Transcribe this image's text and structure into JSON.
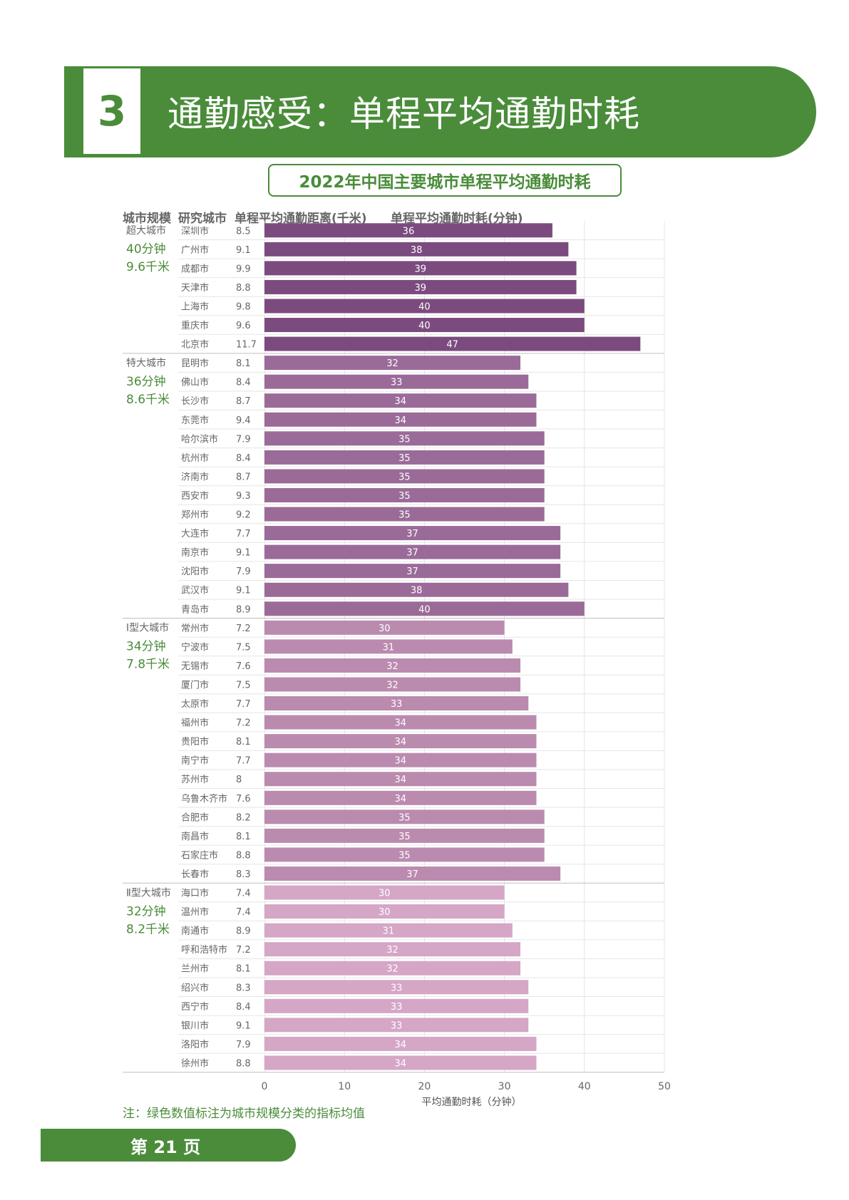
{
  "section": {
    "number": "3",
    "title": "通勤感受：单程平均通勤时耗"
  },
  "chart_data": {
    "type": "bar",
    "orientation": "horizontal",
    "title": "2022年中国主要城市单程平均通勤时耗",
    "column_headers": {
      "scale": "城市规模",
      "city": "研究城市",
      "distance": "单程平均通勤距离(千米)",
      "time": "单程平均通勤时耗(分钟)"
    },
    "xlabel": "平均通勤时耗（分钟）",
    "xlim": [
      0,
      50
    ],
    "xticks": [
      "0",
      "10",
      "20",
      "30",
      "40",
      "50"
    ],
    "groups": [
      {
        "name": "超大城市",
        "avg_time": "40分钟",
        "avg_distance": "9.6千米",
        "color": "#7b4b7f",
        "cities": [
          {
            "city": "深圳市",
            "distance": "8.5",
            "time": 36
          },
          {
            "city": "广州市",
            "distance": "9.1",
            "time": 38
          },
          {
            "city": "成都市",
            "distance": "9.9",
            "time": 39
          },
          {
            "city": "天津市",
            "distance": "8.8",
            "time": 39
          },
          {
            "city": "上海市",
            "distance": "9.8",
            "time": 40
          },
          {
            "city": "重庆市",
            "distance": "9.6",
            "time": 40
          },
          {
            "city": "北京市",
            "distance": "11.7",
            "time": 47
          }
        ]
      },
      {
        "name": "特大城市",
        "avg_time": "36分钟",
        "avg_distance": "8.6千米",
        "color": "#9a6b98",
        "cities": [
          {
            "city": "昆明市",
            "distance": "8.1",
            "time": 32
          },
          {
            "city": "佛山市",
            "distance": "8.4",
            "time": 33
          },
          {
            "city": "长沙市",
            "distance": "8.7",
            "time": 34
          },
          {
            "city": "东莞市",
            "distance": "9.4",
            "time": 34
          },
          {
            "city": "哈尔滨市",
            "distance": "7.9",
            "time": 35
          },
          {
            "city": "杭州市",
            "distance": "8.4",
            "time": 35
          },
          {
            "city": "济南市",
            "distance": "8.7",
            "time": 35
          },
          {
            "city": "西安市",
            "distance": "9.3",
            "time": 35
          },
          {
            "city": "郑州市",
            "distance": "9.2",
            "time": 35
          },
          {
            "city": "大连市",
            "distance": "7.7",
            "time": 37
          },
          {
            "city": "南京市",
            "distance": "9.1",
            "time": 37
          },
          {
            "city": "沈阳市",
            "distance": "7.9",
            "time": 37
          },
          {
            "city": "武汉市",
            "distance": "9.1",
            "time": 38
          },
          {
            "city": "青岛市",
            "distance": "8.9",
            "time": 40
          }
        ]
      },
      {
        "name": "Ⅰ型大城市",
        "avg_time": "34分钟",
        "avg_distance": "7.8千米",
        "color": "#bb8aaf",
        "cities": [
          {
            "city": "常州市",
            "distance": "7.2",
            "time": 30
          },
          {
            "city": "宁波市",
            "distance": "7.5",
            "time": 31
          },
          {
            "city": "无锡市",
            "distance": "7.6",
            "time": 32
          },
          {
            "city": "厦门市",
            "distance": "7.5",
            "time": 32
          },
          {
            "city": "太原市",
            "distance": "7.7",
            "time": 33
          },
          {
            "city": "福州市",
            "distance": "7.2",
            "time": 34
          },
          {
            "city": "贵阳市",
            "distance": "8.1",
            "time": 34
          },
          {
            "city": "南宁市",
            "distance": "7.7",
            "time": 34
          },
          {
            "city": "苏州市",
            "distance": "8",
            "time": 34
          },
          {
            "city": "乌鲁木齐市",
            "distance": "7.6",
            "time": 34
          },
          {
            "city": "合肥市",
            "distance": "8.2",
            "time": 35
          },
          {
            "city": "南昌市",
            "distance": "8.1",
            "time": 35
          },
          {
            "city": "石家庄市",
            "distance": "8.8",
            "time": 35
          },
          {
            "city": "长春市",
            "distance": "8.3",
            "time": 37
          }
        ]
      },
      {
        "name": "Ⅱ型大城市",
        "avg_time": "32分钟",
        "avg_distance": "8.2千米",
        "color": "#d5a6c6",
        "cities": [
          {
            "city": "海口市",
            "distance": "7.4",
            "time": 30
          },
          {
            "city": "温州市",
            "distance": "7.4",
            "time": 30
          },
          {
            "city": "南通市",
            "distance": "8.9",
            "time": 31
          },
          {
            "city": "呼和浩特市",
            "distance": "7.2",
            "time": 32
          },
          {
            "city": "兰州市",
            "distance": "8.1",
            "time": 32
          },
          {
            "city": "绍兴市",
            "distance": "8.3",
            "time": 33
          },
          {
            "city": "西宁市",
            "distance": "8.4",
            "time": 33
          },
          {
            "city": "银川市",
            "distance": "9.1",
            "time": 33
          },
          {
            "city": "洛阳市",
            "distance": "7.9",
            "time": 34
          },
          {
            "city": "徐州市",
            "distance": "8.8",
            "time": 34
          }
        ]
      }
    ]
  },
  "footnote": "注：绿色数值标注为城市规模分类的指标均值",
  "page": "第 21 页",
  "colors": {
    "accent_green": "#4a8c3a"
  }
}
